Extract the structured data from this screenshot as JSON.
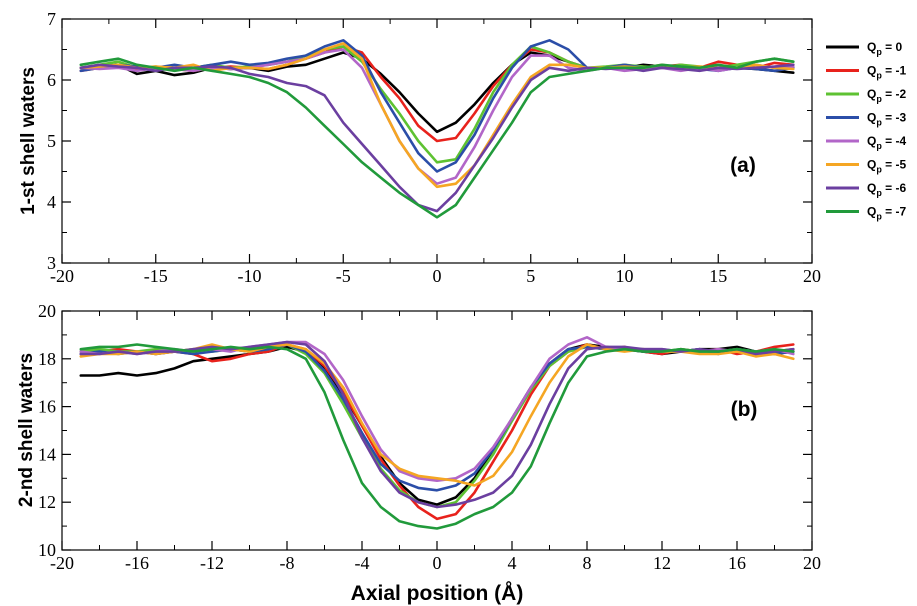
{
  "chart_data": [
    {
      "type": "line",
      "panel_label": "(a)",
      "ylabel": "1-st shell waters",
      "xlabel": "",
      "xlim": [
        -20,
        20
      ],
      "ylim": [
        3,
        7
      ],
      "xticks": [
        -20,
        -15,
        -10,
        -5,
        0,
        5,
        10,
        15,
        20
      ],
      "yticks": [
        3,
        4,
        5,
        6,
        7
      ],
      "x": [
        -19,
        -18,
        -17,
        -16,
        -15,
        -14,
        -13,
        -12,
        -11,
        -10,
        -9,
        -8,
        -7,
        -6,
        -5,
        -4,
        -3,
        -2,
        -1,
        0,
        1,
        2,
        3,
        4,
        5,
        6,
        7,
        8,
        9,
        10,
        11,
        12,
        13,
        14,
        15,
        16,
        17,
        18,
        19
      ],
      "series": [
        {
          "name": "Qp = 0",
          "color": "#000000",
          "values": [
            6.2,
            6.22,
            6.25,
            6.1,
            6.15,
            6.08,
            6.12,
            6.2,
            6.18,
            6.2,
            6.15,
            6.22,
            6.25,
            6.35,
            6.45,
            6.35,
            6.1,
            5.8,
            5.45,
            5.15,
            5.3,
            5.6,
            5.95,
            6.25,
            6.45,
            6.4,
            6.3,
            6.2,
            6.2,
            6.2,
            6.25,
            6.22,
            6.2,
            6.18,
            6.2,
            6.2,
            6.18,
            6.15,
            6.12
          ]
        },
        {
          "name": "Qp = -1",
          "color": "#e8221c",
          "values": [
            6.15,
            6.2,
            6.22,
            6.18,
            6.2,
            6.18,
            6.15,
            6.2,
            6.22,
            6.2,
            6.18,
            6.25,
            6.35,
            6.45,
            6.55,
            6.45,
            6.05,
            5.7,
            5.25,
            5.0,
            5.05,
            5.45,
            5.9,
            6.25,
            6.5,
            6.45,
            6.3,
            6.2,
            6.2,
            6.25,
            6.2,
            6.22,
            6.25,
            6.2,
            6.3,
            6.25,
            6.2,
            6.28,
            6.25
          ]
        },
        {
          "name": "Qp = -2",
          "color": "#5ec232",
          "values": [
            6.2,
            6.25,
            6.3,
            6.2,
            6.22,
            6.18,
            6.2,
            6.25,
            6.2,
            6.22,
            6.25,
            6.3,
            6.4,
            6.5,
            6.55,
            6.3,
            5.85,
            5.45,
            5.0,
            4.65,
            4.7,
            5.2,
            5.8,
            6.25,
            6.55,
            6.45,
            6.3,
            6.2,
            6.22,
            6.25,
            6.22,
            6.2,
            6.25,
            6.22,
            6.2,
            6.25,
            6.3,
            6.35,
            6.3
          ]
        },
        {
          "name": "Qp = -3",
          "color": "#2b4ea8",
          "values": [
            6.15,
            6.2,
            6.25,
            6.22,
            6.2,
            6.25,
            6.2,
            6.25,
            6.3,
            6.25,
            6.28,
            6.35,
            6.4,
            6.55,
            6.65,
            6.4,
            5.8,
            5.3,
            4.8,
            4.5,
            4.65,
            5.1,
            5.7,
            6.2,
            6.55,
            6.65,
            6.5,
            6.2,
            6.2,
            6.25,
            6.2,
            6.22,
            6.2,
            6.18,
            6.15,
            6.2,
            6.18,
            6.15,
            6.2
          ]
        },
        {
          "name": "Qp = -4",
          "color": "#b266c8",
          "values": [
            6.2,
            6.18,
            6.2,
            6.15,
            6.2,
            6.18,
            6.15,
            6.2,
            6.18,
            6.2,
            6.25,
            6.3,
            6.35,
            6.45,
            6.5,
            6.2,
            5.6,
            5.0,
            4.55,
            4.3,
            4.4,
            4.9,
            5.5,
            6.05,
            6.4,
            6.4,
            6.2,
            6.15,
            6.2,
            6.15,
            6.18,
            6.2,
            6.15,
            6.2,
            6.15,
            6.2,
            6.25,
            6.2,
            6.22
          ]
        },
        {
          "name": "Qp = -5",
          "color": "#f5a623",
          "values": [
            6.2,
            6.22,
            6.25,
            6.2,
            6.22,
            6.2,
            6.25,
            6.15,
            6.2,
            6.2,
            6.18,
            6.25,
            6.35,
            6.5,
            6.6,
            6.35,
            5.6,
            5.0,
            4.55,
            4.25,
            4.3,
            4.6,
            5.1,
            5.6,
            6.05,
            6.25,
            6.25,
            6.2,
            6.2,
            6.22,
            6.2,
            6.25,
            6.2,
            6.22,
            6.2,
            6.2,
            6.25,
            6.2,
            6.18
          ]
        },
        {
          "name": "Qp = -6",
          "color": "#6b3fa0",
          "values": [
            6.2,
            6.25,
            6.22,
            6.2,
            6.15,
            6.2,
            6.2,
            6.22,
            6.2,
            6.1,
            6.05,
            5.95,
            5.9,
            5.75,
            5.3,
            4.95,
            4.6,
            4.25,
            3.95,
            3.85,
            4.15,
            4.6,
            5.05,
            5.55,
            6.0,
            6.2,
            6.15,
            6.2,
            6.18,
            6.2,
            6.15,
            6.2,
            6.18,
            6.15,
            6.2,
            6.18,
            6.2,
            6.22,
            6.25
          ]
        },
        {
          "name": "Qp = -7",
          "color": "#219a3b",
          "values": [
            6.25,
            6.3,
            6.35,
            6.25,
            6.2,
            6.15,
            6.2,
            6.15,
            6.1,
            6.05,
            5.95,
            5.8,
            5.55,
            5.25,
            4.95,
            4.65,
            4.4,
            4.15,
            3.95,
            3.75,
            3.95,
            4.4,
            4.85,
            5.3,
            5.8,
            6.05,
            6.1,
            6.15,
            6.2,
            6.2,
            6.2,
            6.25,
            6.22,
            6.2,
            6.25,
            6.2,
            6.3,
            6.35,
            6.3
          ]
        }
      ]
    },
    {
      "type": "line",
      "panel_label": "(b)",
      "ylabel": "2-nd shell waters",
      "xlabel": "Axial position (Å)",
      "xlim": [
        -20,
        20
      ],
      "ylim": [
        10,
        20
      ],
      "xticks": [
        -20,
        -16,
        -12,
        -8,
        -4,
        0,
        4,
        8,
        12,
        16,
        20
      ],
      "yticks": [
        10,
        12,
        14,
        16,
        18,
        20
      ],
      "x": [
        -19,
        -18,
        -17,
        -16,
        -15,
        -14,
        -13,
        -12,
        -11,
        -10,
        -9,
        -8,
        -7,
        -6,
        -5,
        -4,
        -3,
        -2,
        -1,
        0,
        1,
        2,
        3,
        4,
        5,
        6,
        7,
        8,
        9,
        10,
        11,
        12,
        13,
        14,
        15,
        16,
        17,
        18,
        19
      ],
      "series": [
        {
          "name": "Qp = 0",
          "color": "#000000",
          "values": [
            17.3,
            17.3,
            17.4,
            17.3,
            17.4,
            17.6,
            17.9,
            18.0,
            18.1,
            18.2,
            18.3,
            18.5,
            18.3,
            17.6,
            16.5,
            15.2,
            13.9,
            12.8,
            12.1,
            11.9,
            12.2,
            13.0,
            14.2,
            15.5,
            16.8,
            17.8,
            18.4,
            18.6,
            18.5,
            18.4,
            18.3,
            18.2,
            18.3,
            18.4,
            18.4,
            18.5,
            18.3,
            18.2,
            18.3
          ]
        },
        {
          "name": "Qp = -1",
          "color": "#e8221c",
          "values": [
            18.3,
            18.3,
            18.4,
            18.3,
            18.2,
            18.3,
            18.2,
            17.9,
            18.0,
            18.2,
            18.3,
            18.6,
            18.4,
            17.7,
            16.6,
            15.2,
            13.8,
            12.7,
            11.8,
            11.3,
            11.5,
            12.4,
            13.7,
            15.0,
            16.5,
            17.7,
            18.3,
            18.6,
            18.4,
            18.5,
            18.3,
            18.2,
            18.4,
            18.3,
            18.4,
            18.2,
            18.3,
            18.5,
            18.6
          ]
        },
        {
          "name": "Qp = -2",
          "color": "#5ec232",
          "values": [
            18.3,
            18.4,
            18.3,
            18.3,
            18.4,
            18.3,
            18.4,
            18.3,
            18.4,
            18.3,
            18.4,
            18.6,
            18.2,
            17.4,
            16.1,
            14.7,
            13.4,
            12.5,
            12.0,
            11.8,
            12.0,
            12.9,
            14.0,
            15.4,
            16.7,
            17.7,
            18.3,
            18.5,
            18.4,
            18.4,
            18.4,
            18.3,
            18.4,
            18.3,
            18.3,
            18.4,
            18.3,
            18.3,
            18.4
          ]
        },
        {
          "name": "Qp = -3",
          "color": "#2b4ea8",
          "values": [
            18.2,
            18.3,
            18.2,
            18.3,
            18.2,
            18.3,
            18.2,
            18.3,
            18.4,
            18.3,
            18.4,
            18.6,
            18.3,
            17.5,
            16.3,
            14.9,
            13.6,
            12.9,
            12.6,
            12.5,
            12.7,
            13.2,
            14.2,
            15.5,
            16.8,
            17.8,
            18.4,
            18.5,
            18.4,
            18.4,
            18.3,
            18.3,
            18.3,
            18.4,
            18.2,
            18.4,
            18.3,
            18.2,
            18.3
          ]
        },
        {
          "name": "Qp = -4",
          "color": "#b266c8",
          "values": [
            18.3,
            18.2,
            18.3,
            18.2,
            18.3,
            18.4,
            18.3,
            18.4,
            18.3,
            18.5,
            18.6,
            18.7,
            18.7,
            18.2,
            17.1,
            15.6,
            14.2,
            13.3,
            13.0,
            12.9,
            13.0,
            13.4,
            14.3,
            15.5,
            16.8,
            18.0,
            18.6,
            18.9,
            18.5,
            18.4,
            18.4,
            18.4,
            18.3,
            18.3,
            18.4,
            18.3,
            18.3,
            18.4,
            18.2
          ]
        },
        {
          "name": "Qp = -5",
          "color": "#f5a623",
          "values": [
            18.1,
            18.2,
            18.2,
            18.3,
            18.2,
            18.3,
            18.4,
            18.6,
            18.4,
            18.3,
            18.5,
            18.6,
            18.4,
            17.8,
            16.8,
            15.3,
            14.0,
            13.4,
            13.1,
            13.0,
            12.9,
            12.7,
            13.1,
            14.1,
            15.6,
            17.0,
            18.1,
            18.6,
            18.4,
            18.3,
            18.4,
            18.3,
            18.3,
            18.2,
            18.2,
            18.3,
            18.1,
            18.2,
            18.0
          ]
        },
        {
          "name": "Qp = -6",
          "color": "#6b3fa0",
          "values": [
            18.2,
            18.2,
            18.3,
            18.2,
            18.3,
            18.3,
            18.4,
            18.5,
            18.4,
            18.5,
            18.6,
            18.7,
            18.6,
            17.9,
            16.5,
            14.7,
            13.3,
            12.4,
            12.0,
            11.8,
            11.9,
            12.1,
            12.4,
            13.1,
            14.4,
            16.1,
            17.6,
            18.4,
            18.5,
            18.5,
            18.4,
            18.4,
            18.3,
            18.4,
            18.3,
            18.4,
            18.2,
            18.3,
            18.4
          ]
        },
        {
          "name": "Qp = -7",
          "color": "#219a3b",
          "values": [
            18.4,
            18.5,
            18.5,
            18.6,
            18.5,
            18.4,
            18.3,
            18.4,
            18.5,
            18.4,
            18.5,
            18.4,
            18.0,
            16.6,
            14.6,
            12.8,
            11.8,
            11.2,
            11.0,
            10.9,
            11.1,
            11.5,
            11.8,
            12.4,
            13.5,
            15.3,
            17.0,
            18.1,
            18.3,
            18.4,
            18.3,
            18.3,
            18.4,
            18.3,
            18.3,
            18.4,
            18.3,
            18.4,
            18.3
          ]
        }
      ]
    }
  ],
  "legend": {
    "placement": "right",
    "entries": [
      {
        "base": "Q",
        "sub": "p",
        "rest": " = 0",
        "color": "#000000"
      },
      {
        "base": "Q",
        "sub": "p",
        "rest": " = -1",
        "color": "#e8221c"
      },
      {
        "base": "Q",
        "sub": "p",
        "rest": " = -2",
        "color": "#5ec232"
      },
      {
        "base": "Q",
        "sub": "p",
        "rest": " = -3",
        "color": "#2b4ea8"
      },
      {
        "base": "Q",
        "sub": "p",
        "rest": " = -4",
        "color": "#b266c8"
      },
      {
        "base": "Q",
        "sub": "p",
        "rest": " = -5",
        "color": "#f5a623"
      },
      {
        "base": "Q",
        "sub": "p",
        "rest": " = -6",
        "color": "#6b3fa0"
      },
      {
        "base": "Q",
        "sub": "p",
        "rest": " = -7",
        "color": "#219a3b"
      }
    ]
  }
}
